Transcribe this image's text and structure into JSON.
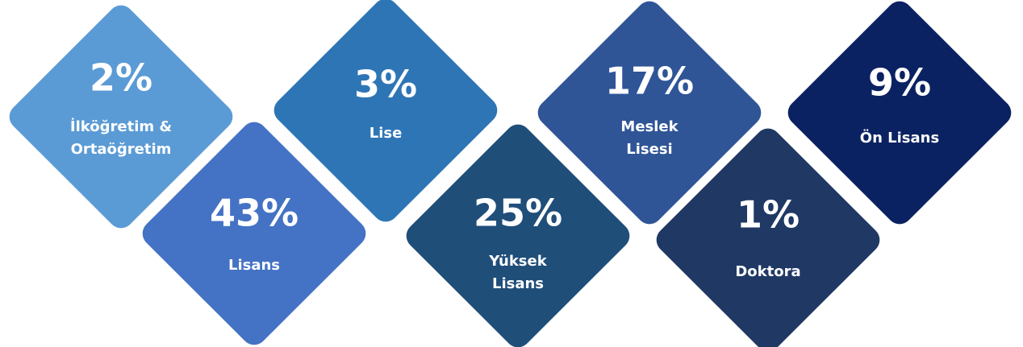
{
  "items": [
    {
      "value": "2%",
      "lines": [
        "İlköğretim &",
        "Ortaöğretim"
      ]
    },
    {
      "value": "43%",
      "lines": [
        "Lisans"
      ]
    },
    {
      "value": "3%",
      "lines": [
        "Lise"
      ]
    },
    {
      "value": "25%",
      "lines": [
        "Yüksek",
        "Lisans"
      ]
    },
    {
      "value": "17%",
      "lines": [
        "Meslek",
        "Lisesi"
      ]
    },
    {
      "value": "1%",
      "lines": [
        "Doktora"
      ]
    },
    {
      "value": "9%",
      "lines": [
        "Ön Lisans"
      ]
    }
  ]
}
